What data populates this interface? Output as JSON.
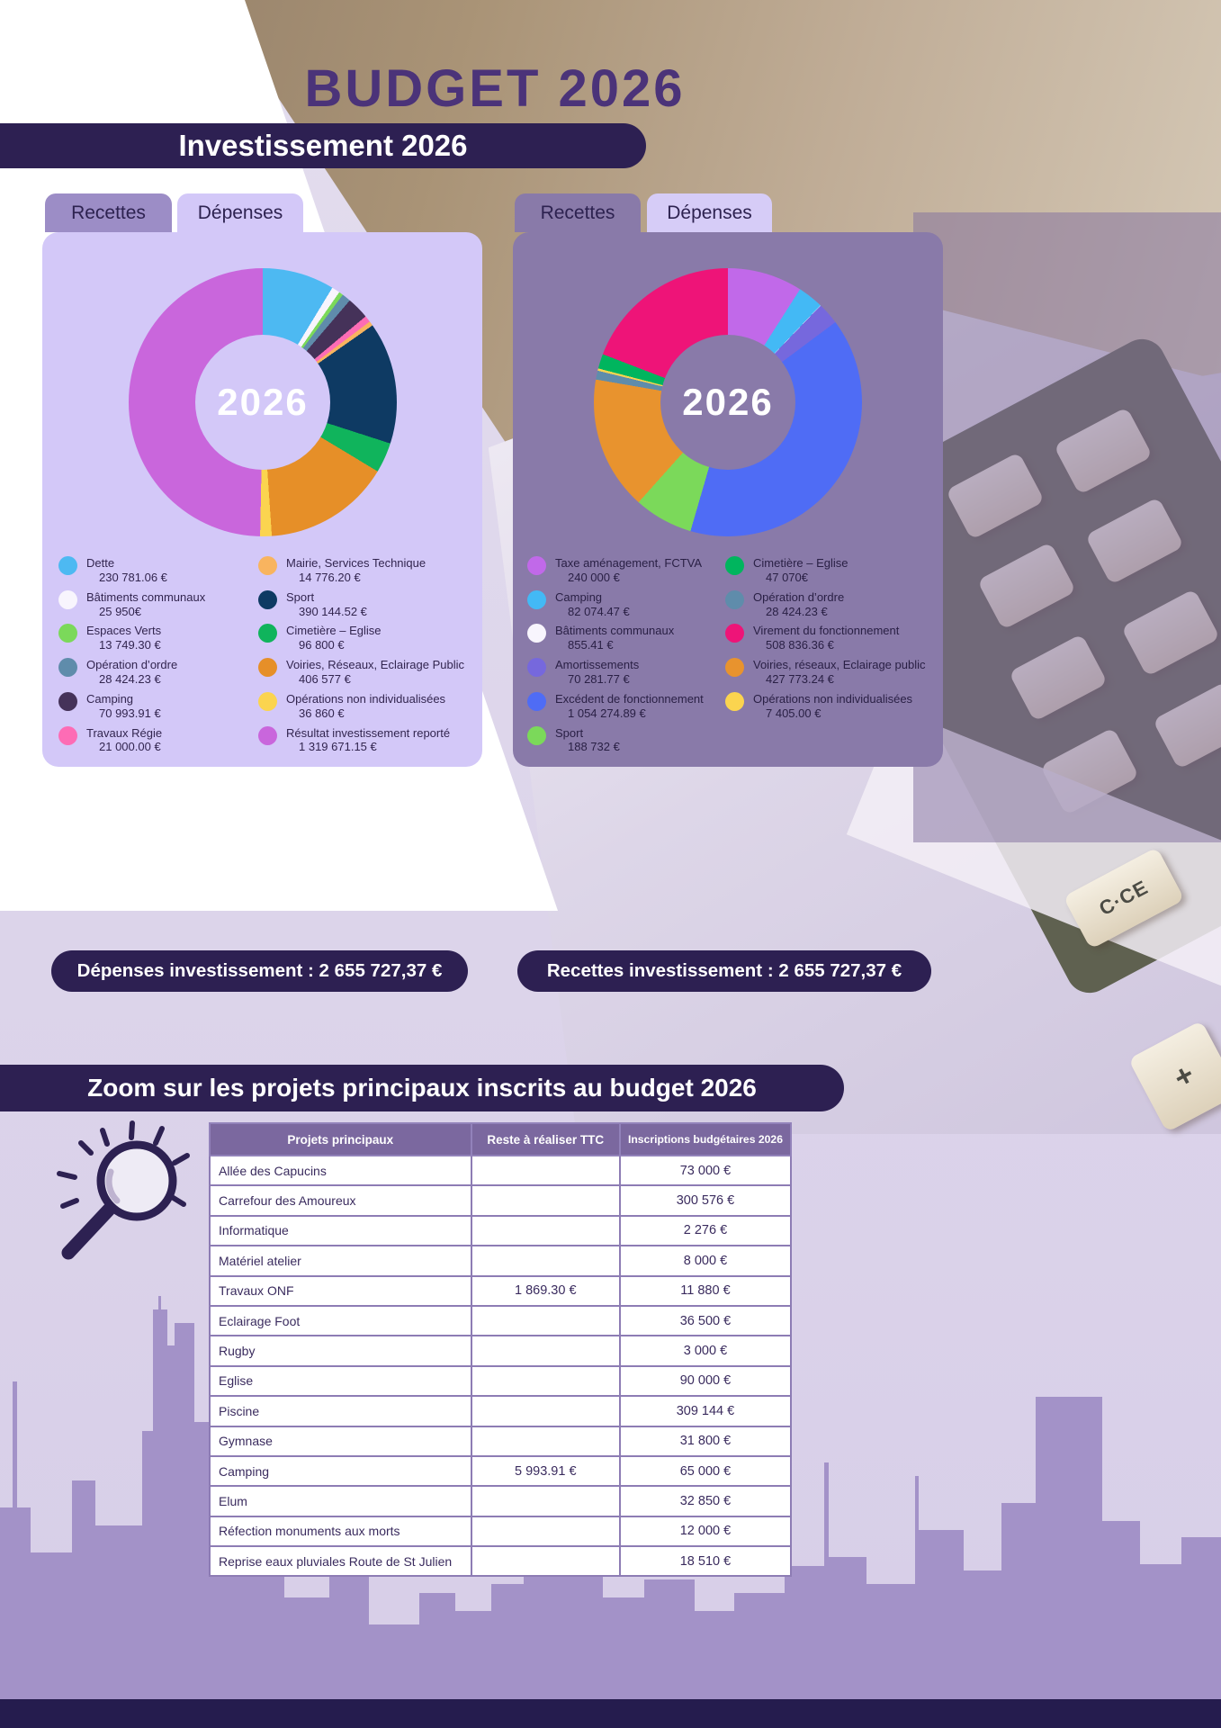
{
  "page": {
    "title": "BUDGET 2026",
    "section_banner": "Investissement 2026",
    "zoom_banner": "Zoom sur les projets principaux inscrits au budget 2026",
    "accent_color": "#2d2052",
    "dark_strip_color": "#251c4e"
  },
  "background": {
    "calculator_keys": [
      "C·CE",
      "+"
    ]
  },
  "cards": [
    {
      "name": "Dépenses investissement",
      "tabs": [
        {
          "label": "Recettes",
          "active": false
        },
        {
          "label": "Dépenses",
          "active": true
        }
      ],
      "total_banner": "Dépenses investissement : 2 655 727,37 €"
    },
    {
      "name": "Recettes investissement",
      "tabs": [
        {
          "label": "Recettes",
          "active": true
        },
        {
          "label": "Dépenses",
          "active": false
        }
      ],
      "total_banner": "Recettes investissement : 2 655 727,37 €"
    }
  ],
  "chart_data": [
    {
      "type": "pie",
      "title": "Dépenses investissement 2026",
      "center_label": "2026",
      "total": 2655727.37,
      "total_display": "2 655 727,37 €",
      "legend_position": "below",
      "items": [
        {
          "label": "Dette",
          "value": 230781.06,
          "display": "230 781.06 €",
          "color": "#4db9f2"
        },
        {
          "label": "Bâtiments communaux",
          "value": 25950,
          "display": "25 950€",
          "color": "#f8f5fd"
        },
        {
          "label": "Espaces Verts",
          "value": 13749.3,
          "display": "13 749.30 €",
          "color": "#7bd95a"
        },
        {
          "label": "Opération d’ordre",
          "value": 28424.23,
          "display": "28 424.23 €",
          "color": "#5f8cab"
        },
        {
          "label": "Camping",
          "value": 70993.91,
          "display": "70 993.91 €",
          "color": "#453259"
        },
        {
          "label": "Travaux Régie",
          "value": 21000.0,
          "display": "21 000.00 €",
          "color": "#fd6cb5"
        },
        {
          "label": "Mairie, Services Technique",
          "value": 14776.2,
          "display": "14 776.20 €",
          "color": "#f8b45f"
        },
        {
          "label": "Sport",
          "value": 390144.52,
          "display": "390 144.52 €",
          "color": "#0e3a63"
        },
        {
          "label": "Cimetière – Eglise",
          "value": 96800,
          "display": "96 800 €",
          "color": "#10b45c"
        },
        {
          "label": "Voiries, Réseaux, Eclairage Public",
          "value": 406577,
          "display": "406 577 €",
          "color": "#e68f28"
        },
        {
          "label": "Opérations non individualisées",
          "value": 36860,
          "display": "36 860 €",
          "color": "#fbd44f"
        },
        {
          "label": "Résultat investissement reporté",
          "value": 1319671.15,
          "display": "1 319 671.15 €",
          "color": "#c966dc"
        }
      ],
      "slice_order": [
        0,
        1,
        2,
        3,
        4,
        5,
        6,
        7,
        8,
        9,
        10,
        11
      ],
      "legend_columns": [
        [
          0,
          1,
          2,
          3,
          4,
          5
        ],
        [
          6,
          7,
          8,
          9,
          10,
          11
        ]
      ]
    },
    {
      "type": "pie",
      "title": "Recettes investissement 2026",
      "center_label": "2026",
      "total": 2655727.37,
      "total_display": "2 655 727,37 €",
      "legend_position": "below",
      "items": [
        {
          "label": "Taxe aménagement, FCTVA",
          "value": 240000,
          "display": "240 000 €",
          "color": "#c169e9"
        },
        {
          "label": "Camping",
          "value": 82074.47,
          "display": "82 074.47 €",
          "color": "#43b9f5"
        },
        {
          "label": "Bâtiments communaux",
          "value": 855.41,
          "display": "855.41 €",
          "color": "#f8f5fd"
        },
        {
          "label": "Amortissements",
          "value": 70281.77,
          "display": "70 281.77 €",
          "color": "#7668dd"
        },
        {
          "label": "Excédent de fonctionnement",
          "value": 1054274.89,
          "display": "1 054 274.89 €",
          "color": "#4f6cf5"
        },
        {
          "label": "Sport",
          "value": 188732,
          "display": "188 732 €",
          "color": "#7bd95a"
        },
        {
          "label": "Cimetière – Eglise",
          "value": 47070,
          "display": "47 070€",
          "color": "#00b55e"
        },
        {
          "label": "Opération d’ordre",
          "value": 28424.23,
          "display": "28 424.23 €",
          "color": "#5f8cab"
        },
        {
          "label": "Virement du fonctionnement",
          "value": 508836.36,
          "display": "508 836.36 €",
          "color": "#ee1478"
        },
        {
          "label": "Voiries, réseaux, Eclairage public",
          "value": 427773.24,
          "display": "427 773.24 €",
          "color": "#e8932e"
        },
        {
          "label": "Opérations non individualisées",
          "value": 7405.0,
          "display": "7 405.00 €",
          "color": "#fbd44f"
        }
      ],
      "slice_order": [
        0,
        1,
        2,
        3,
        4,
        5,
        9,
        7,
        10,
        6,
        8
      ],
      "legend_columns": [
        [
          0,
          1,
          2,
          3,
          4,
          5
        ],
        [
          6,
          7,
          8,
          9,
          10
        ]
      ]
    }
  ],
  "table": {
    "headers": [
      "Projets principaux",
      "Reste à réaliser TTC",
      "Inscriptions budgétaires 2026"
    ],
    "rows": [
      [
        "Allée des Capucins",
        "",
        "73 000 €"
      ],
      [
        "Carrefour des Amoureux",
        "",
        "300 576 €"
      ],
      [
        "Informatique",
        "",
        "2 276 €"
      ],
      [
        "Matériel atelier",
        "",
        "8 000 €"
      ],
      [
        "Travaux ONF",
        "1 869.30 €",
        "11 880 €"
      ],
      [
        "Eclairage Foot",
        "",
        "36 500 €"
      ],
      [
        "Rugby",
        "",
        "3 000 €"
      ],
      [
        "Eglise",
        "",
        "90 000 €"
      ],
      [
        "Piscine",
        "",
        "309 144 €"
      ],
      [
        "Gymnase",
        "",
        "31 800 €"
      ],
      [
        "Camping",
        "5 993.91 €",
        "65 000 €"
      ],
      [
        "Elum",
        "",
        "32 850 €"
      ],
      [
        "Réfection monuments aux morts",
        "",
        "12 000 €"
      ],
      [
        "Reprise eaux pluviales Route de St Julien",
        "",
        "18 510 €"
      ]
    ]
  }
}
